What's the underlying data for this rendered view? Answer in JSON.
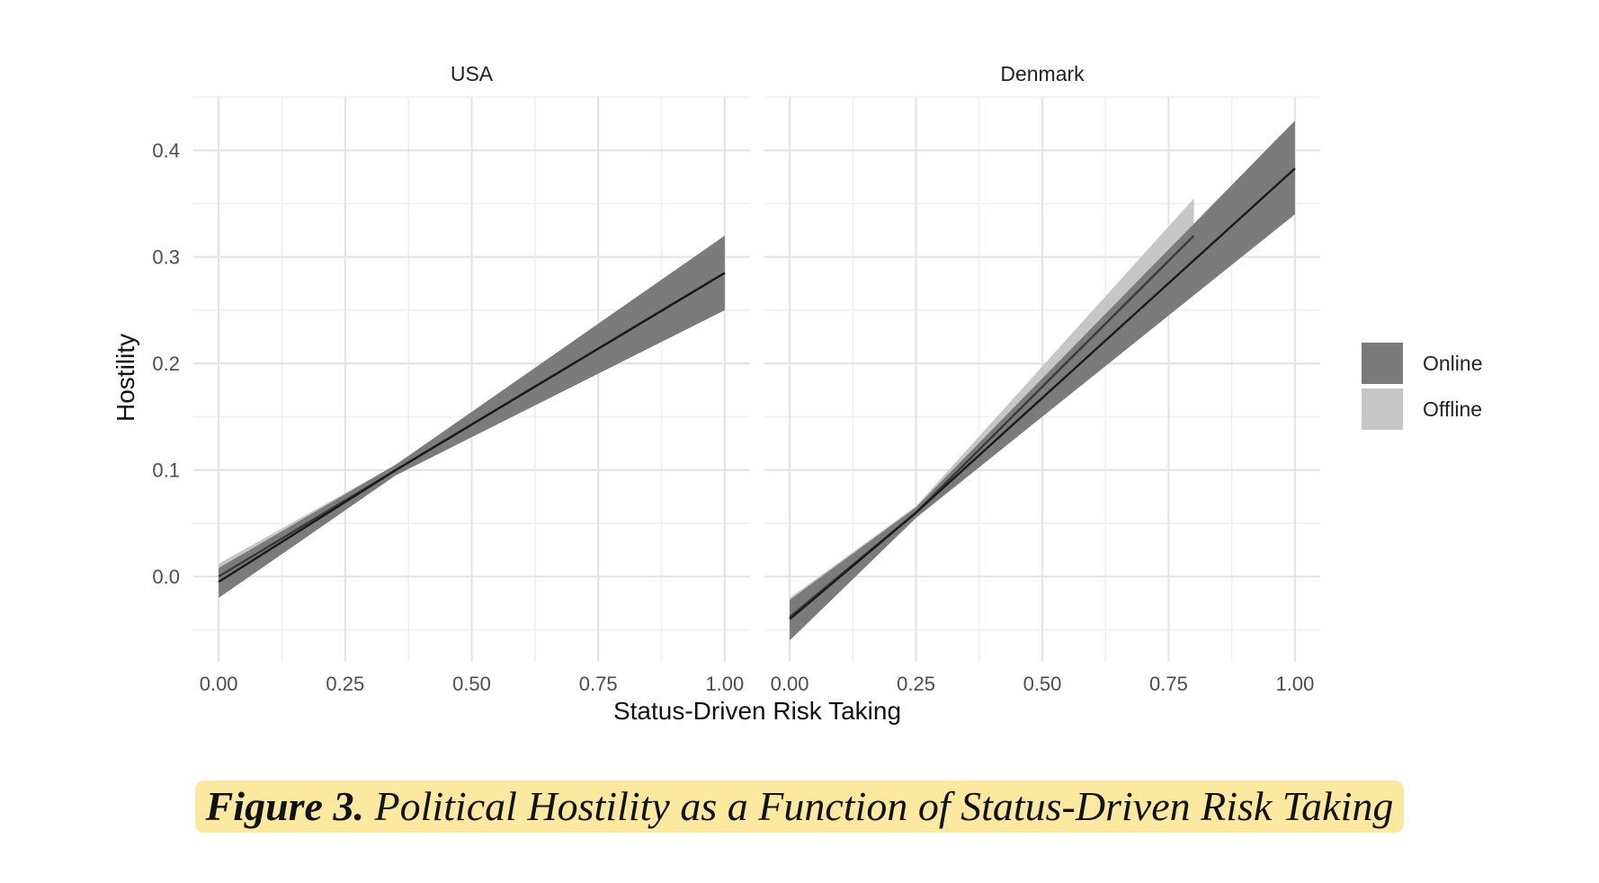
{
  "chart_data": {
    "type": "line",
    "xlabel": "Status-Driven Risk Taking",
    "ylabel": "Hostility",
    "xlim": [
      -0.05,
      1.05
    ],
    "ylim": [
      -0.08,
      0.45
    ],
    "x_ticks": [
      "0.00",
      "0.25",
      "0.50",
      "0.75",
      "1.00"
    ],
    "y_ticks": [
      "0.0",
      "0.1",
      "0.2",
      "0.3",
      "0.4"
    ],
    "grid": true,
    "legend": {
      "position": "right",
      "entries": [
        {
          "name": "Online",
          "color": "#7b7b7b"
        },
        {
          "name": "Offline",
          "color": "#c6c6c6"
        }
      ]
    },
    "panels": [
      {
        "title": "USA",
        "series": [
          {
            "name": "Offline",
            "x": [
              0.0,
              0.35,
              1.0
            ],
            "y": [
              0.0,
              0.1,
              0.285
            ],
            "lower": [
              -0.01,
              0.095,
              0.255
            ],
            "upper": [
              0.012,
              0.105,
              0.315
            ]
          },
          {
            "name": "Online",
            "x": [
              0.0,
              0.35,
              1.0
            ],
            "y": [
              -0.005,
              0.1,
              0.285
            ],
            "lower": [
              -0.02,
              0.095,
              0.25
            ],
            "upper": [
              0.008,
              0.105,
              0.32
            ]
          }
        ]
      },
      {
        "title": "Denmark",
        "series": [
          {
            "name": "Offline",
            "x": [
              0.0,
              0.25,
              0.8
            ],
            "y": [
              -0.038,
              0.06,
              0.32
            ],
            "lower": [
              -0.055,
              0.055,
              0.285
            ],
            "upper": [
              -0.02,
              0.066,
              0.355
            ]
          },
          {
            "name": "Online",
            "x": [
              0.0,
              0.25,
              1.0
            ],
            "y": [
              -0.04,
              0.06,
              0.383
            ],
            "lower": [
              -0.06,
              0.055,
              0.34
            ],
            "upper": [
              -0.022,
              0.065,
              0.428
            ]
          }
        ]
      }
    ]
  },
  "caption": {
    "lead": "Figure 3.",
    "text": "Political Hostility as a Function of Status-Driven Risk Taking"
  }
}
